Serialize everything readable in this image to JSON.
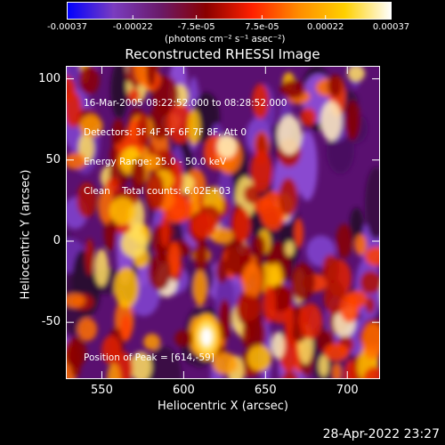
{
  "colorbar": {
    "ticks": [
      "-0.00037",
      "-0.00022",
      "-7.5e-05",
      "7.5e-05",
      "0.00022",
      "0.00037"
    ],
    "tick_values": [
      -0.00037,
      -0.00022,
      -7.5e-05,
      7.5e-05,
      0.00022,
      0.00037
    ],
    "units": "(photons cm⁻² s⁻¹ asec⁻²)",
    "colormap": [
      "#0000ff",
      "#7a3cc0",
      "#6a1a6a",
      "#8a0000",
      "#ff2000",
      "#ff8c00",
      "#ffd000",
      "#ffffff"
    ]
  },
  "chart_data": {
    "type": "heatmap",
    "title": "Reconstructed RHESSI Image",
    "xlabel": "Heliocentric X (arcsec)",
    "ylabel": "Heliocentric Y (arcsec)",
    "xlim": [
      528,
      720
    ],
    "ylim": [
      -85,
      108
    ],
    "x_ticks": [
      "550",
      "600",
      "650",
      "700"
    ],
    "x_tick_values": [
      550,
      600,
      650,
      700
    ],
    "y_ticks": [
      "100",
      "50",
      "0",
      "-50"
    ],
    "y_tick_values": [
      100,
      50,
      0,
      -50
    ],
    "annotations": [
      "16-Mar-2005 08:22:52.000 to 08:28:52.000",
      "Detectors: 3F 4F 5F 6F 7F 8F, Att 0",
      "Energy Range: 25.0 - 50.0 keV",
      "Clean    Total counts: 6.02E+03"
    ],
    "peak_label": "Position of Peak = [614,-59]",
    "peak": [
      614,
      -59
    ]
  },
  "timestamp": "28-Apr-2022 23:27"
}
